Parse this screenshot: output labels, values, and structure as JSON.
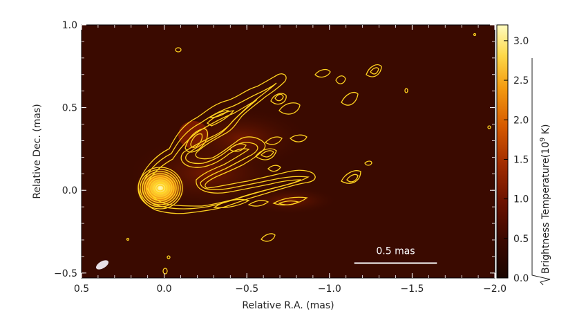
{
  "chart_data": {
    "type": "heatmap",
    "xlabel": "Relative R.A. (mas)",
    "ylabel": "Relative Dec. (mas)",
    "xlim": [
      0.5,
      -2.0
    ],
    "ylim": [
      -0.53,
      1.0
    ],
    "x_ticks": [
      0.5,
      0.0,
      -0.5,
      -1.0,
      -1.5,
      -2.0
    ],
    "x_tick_labels": [
      "0.5",
      "0.0",
      "−0.5",
      "−1.0",
      "−1.5",
      "−2.0"
    ],
    "y_ticks": [
      -0.5,
      0.0,
      0.5,
      1.0
    ],
    "y_tick_labels": [
      "−0.5",
      "0.0",
      "0.5",
      "1.0"
    ],
    "colorbar": {
      "label": "Brightness Temperature(10",
      "label_exp": "9",
      "label_unit": " K)",
      "range": [
        0.0,
        3.2
      ],
      "ticks": [
        0.0,
        0.5,
        1.0,
        1.5,
        2.0,
        2.5,
        3.0
      ],
      "tick_labels": [
        "0.0",
        "0.5",
        "1.0",
        "1.5",
        "2.0",
        "2.5",
        "3.0"
      ],
      "colormap": [
        "#1a0500",
        "#3a0800",
        "#6b1200",
        "#a02c00",
        "#d65a00",
        "#f39a10",
        "#fdd84a",
        "#fffcc0"
      ]
    },
    "scale_bar": {
      "label": "0.5 mas",
      "length_mas": 0.5,
      "x_start": -1.15,
      "y": -0.44
    },
    "core": {
      "x": 0.0,
      "y": 0.0
    },
    "beam": {
      "x": 0.38,
      "y": -0.46,
      "major": 0.05,
      "minor": 0.025,
      "angle_deg": -30
    },
    "contour_color": "#ffd21f",
    "background_color": "#3a0a00"
  }
}
